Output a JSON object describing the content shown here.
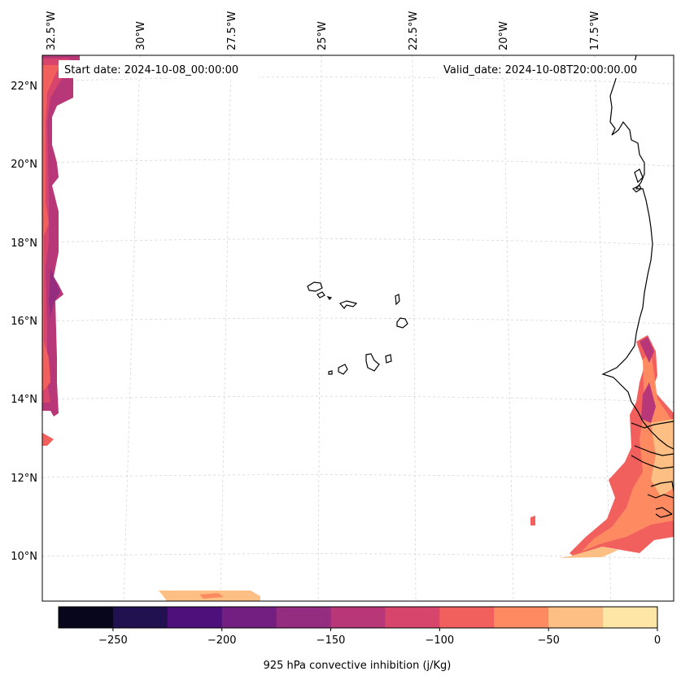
{
  "chart_data": {
    "type": "filled-contour-map",
    "variable_label": "925 hPa convective inhibition (j/Kg)",
    "start_date_text": "Start date: 2024-10-08_00:00:00",
    "valid_date_text": "Valid_date: 2024-10-08T20:00:00.00",
    "lon_labels": [
      "32.5°W",
      "30°W",
      "27.5°W",
      "25°W",
      "22.5°W",
      "20°W",
      "17.5°W"
    ],
    "lat_labels": [
      "22°N",
      "20°N",
      "18°N",
      "16°N",
      "14°N",
      "12°N",
      "10°N"
    ],
    "lon_range": [
      -32.5,
      -15.5
    ],
    "lat_range": [
      9,
      22.8
    ],
    "colorbar": {
      "levels": [
        -275,
        -250,
        -225,
        -200,
        -175,
        -150,
        -125,
        -100,
        -75,
        -50,
        -25,
        0
      ],
      "tick_values": [
        -250,
        -200,
        -150,
        -100,
        -50,
        0
      ],
      "tick_labels": [
        "−250",
        "−200",
        "−150",
        "−100",
        "−50",
        "0"
      ],
      "colors": [
        "#07061c",
        "#221150",
        "#4e117b",
        "#721f81",
        "#942c80",
        "#b73779",
        "#d8456c",
        "#f1605d",
        "#fe8a62",
        "#febf84",
        "#fde6a6"
      ]
    },
    "features": [
      "coastline",
      "country borders",
      "Cape Verde islands"
    ]
  }
}
